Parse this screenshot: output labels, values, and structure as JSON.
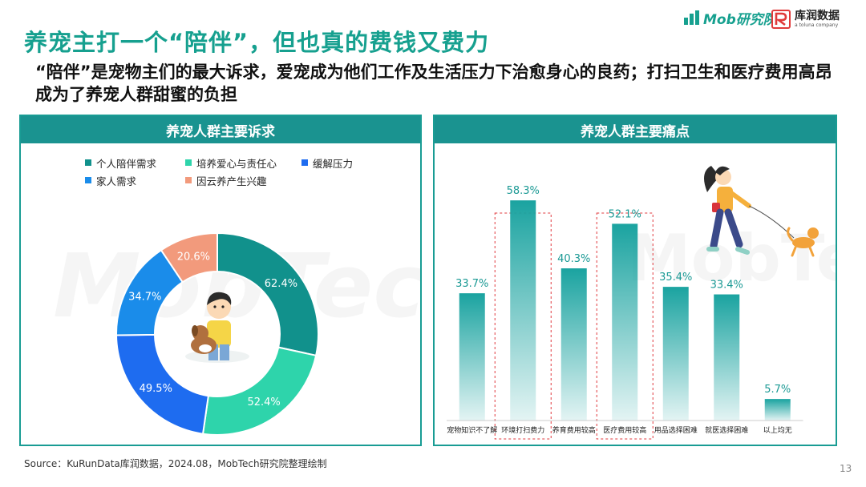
{
  "header": {
    "title": "养宠主打一个“陪伴”，但也真的费钱又费力",
    "subtitle": "“陪伴”是宠物主们的最大诉求，爱宠成为他们工作及生活压力下治愈身心的良药；打扫卫生和医疗费用高昂成为了养宠人群甜蜜的负担"
  },
  "logos": {
    "mob_text": "Mob研究院",
    "kurun_cn": "库润数据",
    "kurun_en": "a toluna company"
  },
  "left_panel": {
    "title": "养宠人群主要诉求"
  },
  "right_panel": {
    "title": "养宠人群主要痛点"
  },
  "watermark": "MobTech 袤博",
  "chart_data": [
    {
      "type": "pie",
      "variant": "donut",
      "legend_position": "top",
      "series": [
        {
          "name": "个人陪伴需求",
          "value": 62.4,
          "label": "62.4%",
          "color": "#11918c"
        },
        {
          "name": "培养爱心与责任心",
          "value": 52.4,
          "label": "52.4%",
          "color": "#2ed4ab"
        },
        {
          "name": "缓解压力",
          "value": 49.5,
          "label": "49.5%",
          "color": "#1e6cf0"
        },
        {
          "name": "家人需求",
          "value": 34.7,
          "label": "34.7%",
          "color": "#1a8cea"
        },
        {
          "name": "因云养产生兴趣",
          "value": 20.6,
          "label": "20.6%",
          "color": "#f29a7c"
        }
      ]
    },
    {
      "type": "bar",
      "categories": [
        "宠物知识不了解",
        "环境打扫费力",
        "养育费用较高",
        "医疗费用较高",
        "用品选择困难",
        "就医选择困难",
        "以上均无"
      ],
      "values": [
        33.7,
        58.3,
        40.3,
        52.1,
        35.4,
        33.4,
        5.7
      ],
      "value_labels": [
        "33.7%",
        "58.3%",
        "40.3%",
        "52.1%",
        "35.4%",
        "33.4%",
        "5.7%"
      ],
      "highlighted": [
        "环境打扫费力",
        "医疗费用较高"
      ],
      "ylim": [
        0,
        70
      ],
      "grid": false,
      "color": "#1aa3a0"
    }
  ],
  "footer": {
    "source": "Source：KuRunData库润数据，2024.08，MobTech研究院整理绘制",
    "page": "13"
  }
}
